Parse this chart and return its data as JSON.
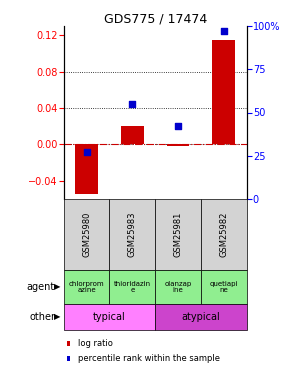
{
  "title": "GDS775 / 17474",
  "samples": [
    "GSM25980",
    "GSM25983",
    "GSM25981",
    "GSM25982"
  ],
  "log_ratios": [
    -0.055,
    0.02,
    -0.002,
    0.115
  ],
  "percentile_ranks": [
    27,
    55,
    42,
    97
  ],
  "agents": [
    "chlorprom\nazine",
    "thioridazin\ne",
    "olanzap\nine",
    "quetiapi\nne"
  ],
  "sample_bg_color": "#d3d3d3",
  "agent_color": "#90ee90",
  "typical_color": "#ff80ff",
  "atypical_color": "#cc44cc",
  "ylim_left": [
    -0.06,
    0.13
  ],
  "ylim_right": [
    0,
    100
  ],
  "bar_color": "#cc0000",
  "dot_color": "#0000cc",
  "left_yticks": [
    -0.04,
    0.0,
    0.04,
    0.08,
    0.12
  ],
  "right_ytick_vals": [
    0,
    25,
    50,
    75,
    100
  ],
  "right_ytick_labels": [
    "0",
    "25",
    "50",
    "75",
    "100%"
  ],
  "grid_lines": [
    0.04,
    0.08
  ],
  "title_fontsize": 9,
  "tick_fontsize": 7,
  "label_fontsize": 7,
  "agent_fontsize": 5,
  "sample_fontsize": 6
}
